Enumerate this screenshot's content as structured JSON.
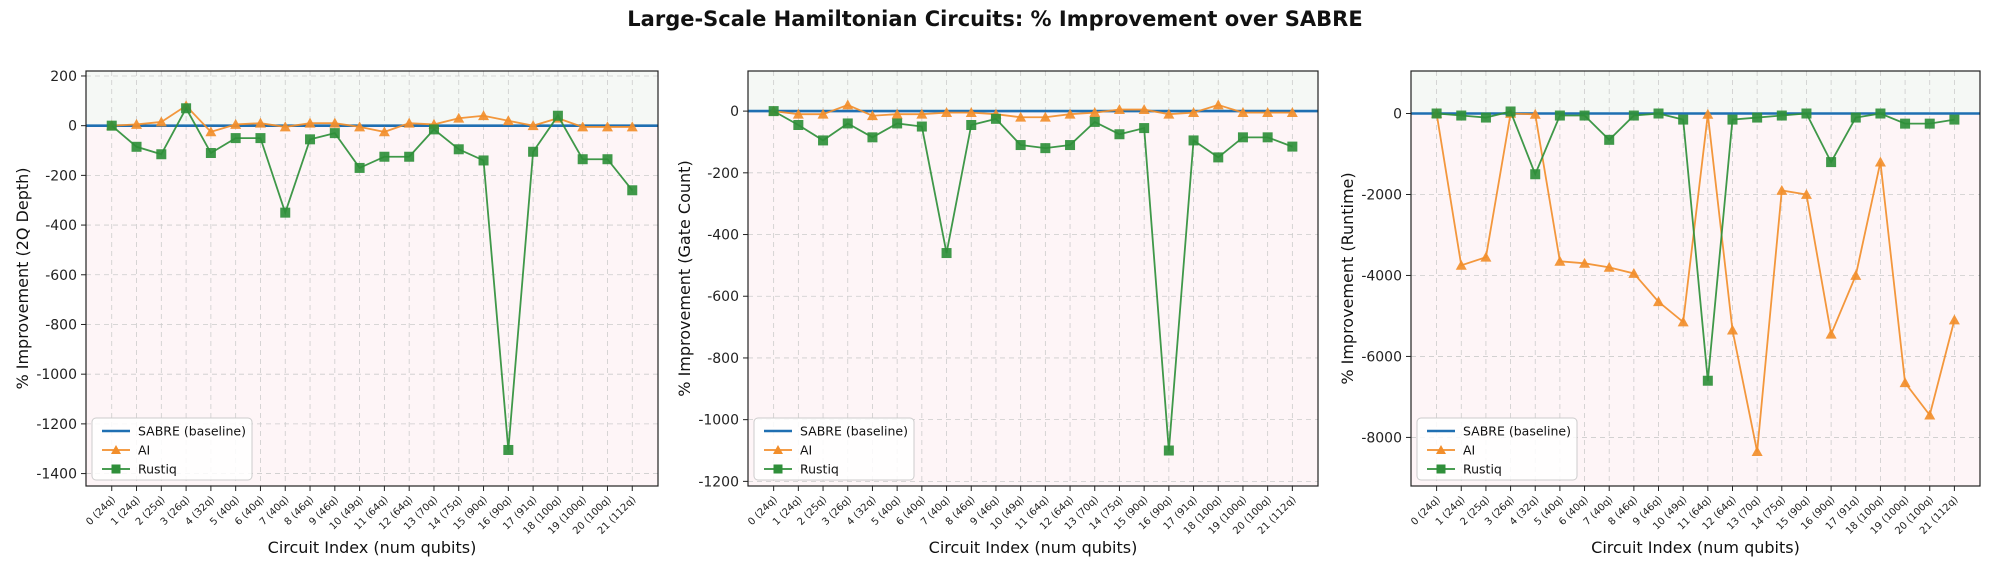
{
  "figure": {
    "title": "Large-Scale Hamiltonian Circuits: % Improvement over SABRE"
  },
  "colors": {
    "sabre": "#1f6fb2",
    "ai": "#f28e2b",
    "rustiq": "#2f8f3a",
    "grid": "#cccccc",
    "above_shade": "#eef3ee",
    "below_shade": "#fdecef"
  },
  "chart_data": [
    {
      "type": "line",
      "xlabel": "Circuit Index (num qubits)",
      "ylabel": "% Improvement (2Q Depth)",
      "ylim": [
        -1450,
        220
      ],
      "yticks": [
        200,
        0,
        -200,
        -400,
        -600,
        -800,
        -1000,
        -1200,
        -1400
      ],
      "grid": true,
      "legend_position": "lower-left",
      "categories": [
        "0 (24q)",
        "1 (24q)",
        "2 (25q)",
        "3 (26q)",
        "4 (32q)",
        "5 (40q)",
        "6 (40q)",
        "7 (40q)",
        "8 (46q)",
        "9 (46q)",
        "10 (49q)",
        "11 (64q)",
        "12 (64q)",
        "13 (70q)",
        "14 (75q)",
        "15 (90q)",
        "16 (90q)",
        "17 (91q)",
        "18 (100q)",
        "19 (100q)",
        "20 (100q)",
        "21 (112q)"
      ],
      "series": [
        {
          "name": "SABRE (baseline)",
          "values": [
            0,
            0,
            0,
            0,
            0,
            0,
            0,
            0,
            0,
            0,
            0,
            0,
            0,
            0,
            0,
            0,
            0,
            0,
            0,
            0,
            0,
            0
          ]
        },
        {
          "name": "AI",
          "values": [
            0,
            5,
            15,
            80,
            -25,
            5,
            10,
            -5,
            10,
            10,
            -5,
            -25,
            10,
            5,
            30,
            40,
            20,
            0,
            30,
            -5,
            -5,
            -5
          ]
        },
        {
          "name": "Rustiq",
          "values": [
            0,
            -85,
            -115,
            70,
            -110,
            -50,
            -50,
            -350,
            -55,
            -30,
            -170,
            -125,
            -125,
            -15,
            -95,
            -140,
            -1305,
            -105,
            40,
            -135,
            -135,
            -260
          ]
        }
      ]
    },
    {
      "type": "line",
      "xlabel": "Circuit Index (num qubits)",
      "ylabel": "% Improvement (Gate Count)",
      "ylim": [
        -1215,
        130
      ],
      "yticks": [
        0,
        -200,
        -400,
        -600,
        -800,
        -1000,
        -1200
      ],
      "grid": true,
      "legend_position": "lower-left",
      "categories": [
        "0 (24q)",
        "1 (24q)",
        "2 (25q)",
        "3 (26q)",
        "4 (32q)",
        "5 (40q)",
        "6 (40q)",
        "7 (40q)",
        "8 (46q)",
        "9 (46q)",
        "10 (49q)",
        "11 (64q)",
        "12 (64q)",
        "13 (70q)",
        "14 (75q)",
        "15 (90q)",
        "16 (90q)",
        "17 (91q)",
        "18 (100q)",
        "19 (100q)",
        "20 (100q)",
        "21 (112q)"
      ],
      "series": [
        {
          "name": "SABRE (baseline)",
          "values": [
            0,
            0,
            0,
            0,
            0,
            0,
            0,
            0,
            0,
            0,
            0,
            0,
            0,
            0,
            0,
            0,
            0,
            0,
            0,
            0,
            0,
            0
          ]
        },
        {
          "name": "AI",
          "values": [
            0,
            -10,
            -10,
            20,
            -15,
            -10,
            -10,
            -5,
            -5,
            -10,
            -20,
            -20,
            -10,
            -5,
            5,
            5,
            -10,
            -5,
            20,
            -5,
            -5,
            -5
          ]
        },
        {
          "name": "Rustiq",
          "values": [
            0,
            -45,
            -95,
            -40,
            -85,
            -40,
            -50,
            -460,
            -45,
            -25,
            -110,
            -120,
            -110,
            -35,
            -75,
            -55,
            -1100,
            -95,
            -150,
            -85,
            -85,
            -115
          ]
        }
      ]
    },
    {
      "type": "line",
      "xlabel": "Circuit Index (num qubits)",
      "ylabel": "% Improvement (Runtime)",
      "ylim": [
        -9200,
        1050
      ],
      "yticks": [
        0,
        -2000,
        -4000,
        -6000,
        -8000
      ],
      "grid": true,
      "legend_position": "lower-left",
      "categories": [
        "0 (24q)",
        "1 (24q)",
        "2 (25q)",
        "3 (26q)",
        "4 (32q)",
        "5 (40q)",
        "6 (40q)",
        "7 (40q)",
        "8 (46q)",
        "9 (46q)",
        "10 (49q)",
        "11 (64q)",
        "12 (64q)",
        "13 (70q)",
        "14 (75q)",
        "15 (90q)",
        "16 (90q)",
        "17 (91q)",
        "18 (100q)",
        "19 (100q)",
        "20 (100q)",
        "21 (112q)"
      ],
      "series": [
        {
          "name": "SABRE (baseline)",
          "values": [
            0,
            0,
            0,
            0,
            0,
            0,
            0,
            0,
            0,
            0,
            0,
            0,
            0,
            0,
            0,
            0,
            0,
            0,
            0,
            0,
            0,
            0
          ]
        },
        {
          "name": "AI",
          "values": [
            0,
            -3750,
            -3550,
            0,
            -20,
            -3650,
            -3700,
            -3800,
            -3950,
            -4650,
            -5150,
            -20,
            -5350,
            -8350,
            -1900,
            -2000,
            -5450,
            -4000,
            -1200,
            -6650,
            -7450,
            -5100
          ]
        },
        {
          "name": "Rustiq",
          "values": [
            0,
            -50,
            -100,
            50,
            -1500,
            -50,
            -50,
            -650,
            -50,
            0,
            -150,
            -6600,
            -150,
            -100,
            -50,
            0,
            -1200,
            -100,
            0,
            -250,
            -250,
            -150
          ]
        }
      ]
    }
  ]
}
